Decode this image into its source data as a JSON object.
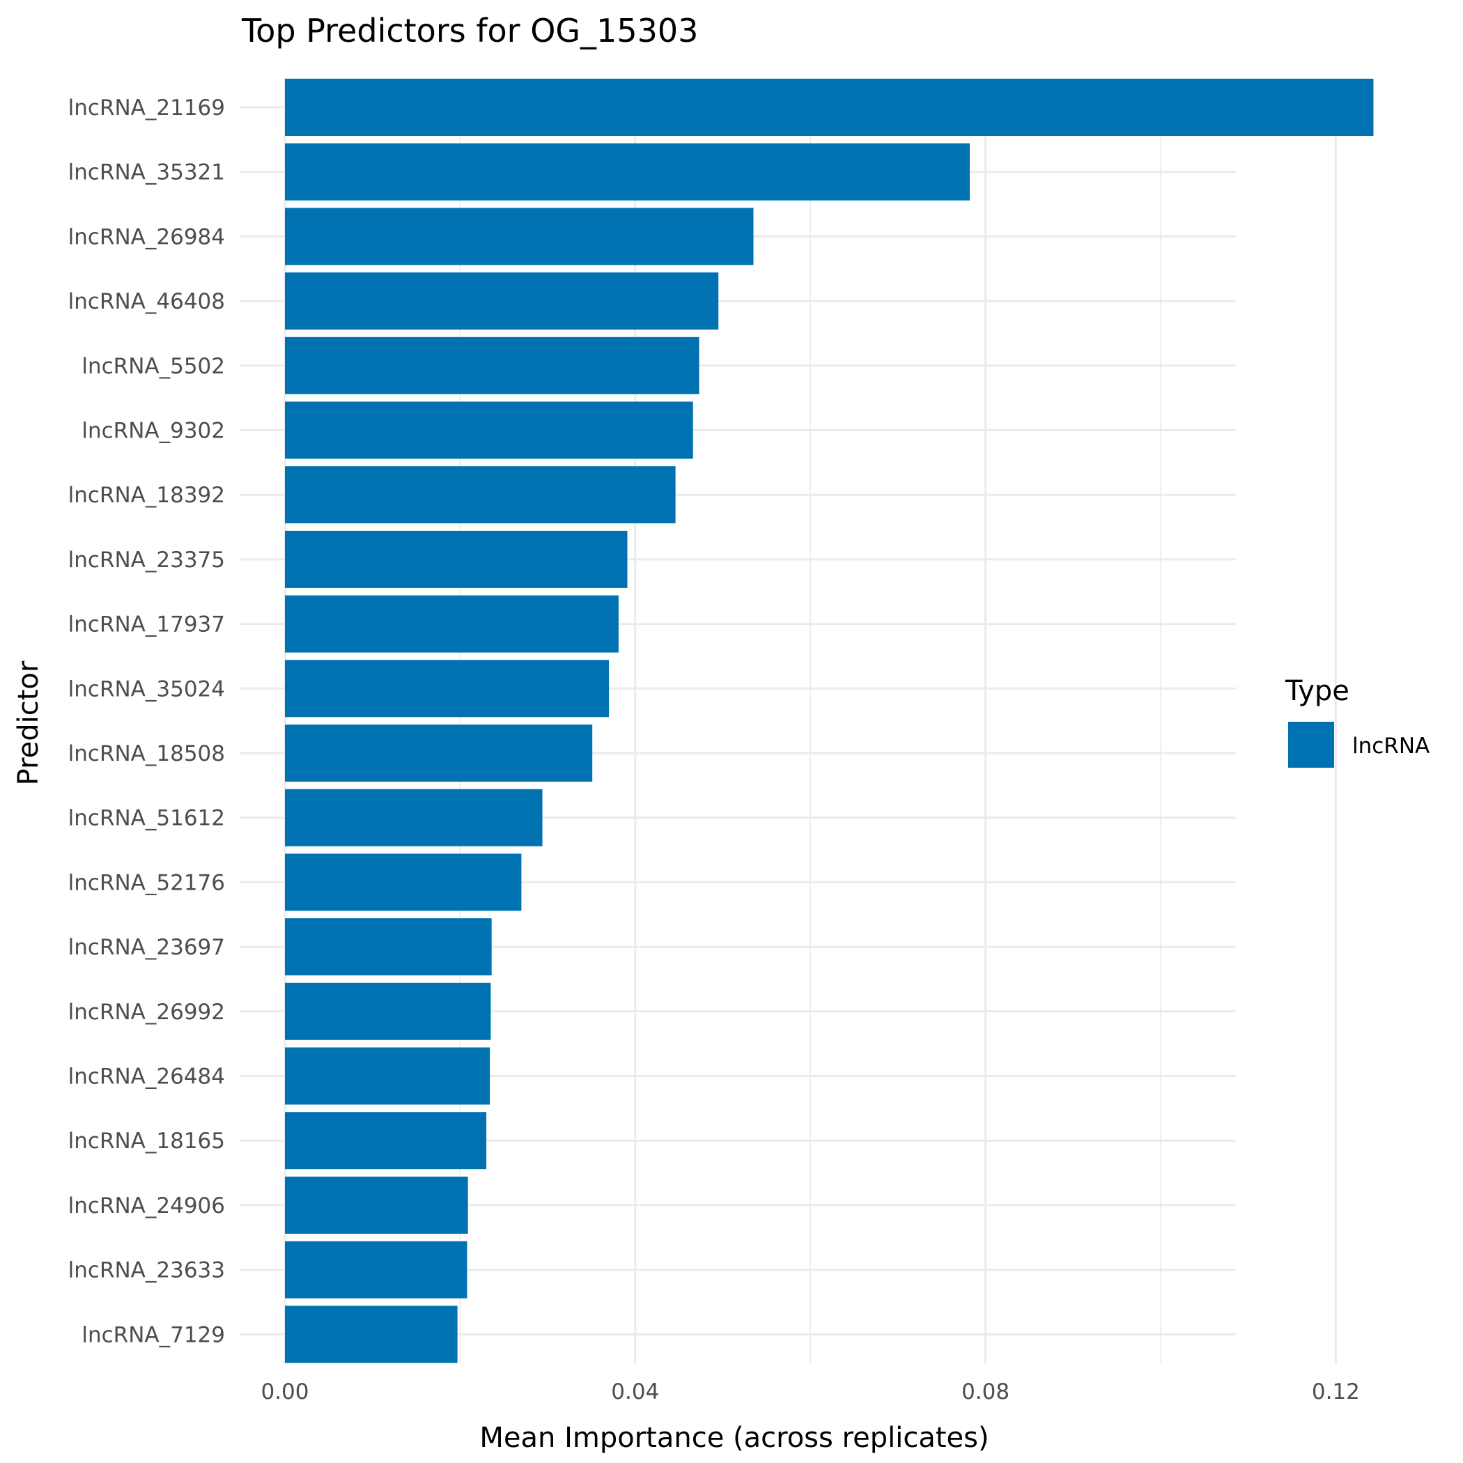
{
  "chart_data": {
    "type": "bar",
    "orientation": "horizontal",
    "title": "Top Predictors for OG_15303",
    "xlabel": "Mean Importance (across replicates)",
    "ylabel": "Predictor",
    "xlim": [
      0,
      0.1305
    ],
    "x_ticks": [
      {
        "value": 0,
        "label": "0.00"
      },
      {
        "value": 0.04,
        "label": "0.04"
      },
      {
        "value": 0.08,
        "label": "0.08"
      },
      {
        "value": 0.12,
        "label": "0.12"
      }
    ],
    "x_minor_ticks": [
      0.02,
      0.06,
      0.1
    ],
    "grid": true,
    "categories": [
      "lncRNA_21169",
      "lncRNA_35321",
      "lncRNA_26984",
      "lncRNA_46408",
      "lncRNA_5502",
      "lncRNA_9302",
      "lncRNA_18392",
      "lncRNA_23375",
      "lncRNA_17937",
      "lncRNA_35024",
      "lncRNA_18508",
      "lncRNA_51612",
      "lncRNA_52176",
      "lncRNA_23697",
      "lncRNA_26992",
      "lncRNA_26484",
      "lncRNA_18165",
      "lncRNA_24906",
      "lncRNA_23633",
      "lncRNA_7129"
    ],
    "values": [
      0.1243,
      0.0782,
      0.0535,
      0.0495,
      0.0473,
      0.0466,
      0.0446,
      0.0391,
      0.0381,
      0.037,
      0.0351,
      0.0294,
      0.027,
      0.0236,
      0.0235,
      0.0234,
      0.023,
      0.0209,
      0.0208,
      0.0197
    ],
    "bar_color": "#0072B2",
    "legend": {
      "title": "Type",
      "position": "right",
      "items": [
        {
          "label": "lncRNA",
          "color": "#0072B2"
        }
      ]
    }
  }
}
